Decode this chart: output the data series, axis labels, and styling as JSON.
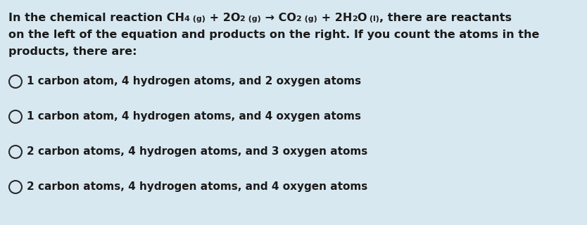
{
  "background_color": "#d8e8f0",
  "text_color": "#1a1a1a",
  "header_line1_parts": [
    {
      "text": "In the chemical reaction CH",
      "sub": false,
      "size": 11.5
    },
    {
      "text": "4 (g)",
      "sub": true,
      "size": 8
    },
    {
      "text": " + 2O",
      "sub": false,
      "size": 11.5
    },
    {
      "text": "2 (g)",
      "sub": true,
      "size": 8
    },
    {
      "text": " → CO",
      "sub": false,
      "size": 11.5
    },
    {
      "text": "2 (g)",
      "sub": true,
      "size": 8
    },
    {
      "text": " + 2H",
      "sub": false,
      "size": 11.5
    },
    {
      "text": "2",
      "sub": true,
      "size": 8
    },
    {
      "text": "O",
      "sub": false,
      "size": 11.5
    },
    {
      "text": " (l)",
      "sub": true,
      "size": 8
    },
    {
      "text": ", there are reactants",
      "sub": false,
      "size": 11.5
    }
  ],
  "header_line2": "on the left of the equation and products on the right. If you count the atoms in the",
  "header_line3": "products, there are:",
  "options": [
    "1 carbon atom, 4 hydrogen atoms, and 2 oxygen atoms",
    "1 carbon atom, 4 hydrogen atoms, and 4 oxygen atoms",
    "2 carbon atoms, 4 hydrogen atoms, and 3 oxygen atoms",
    "2 carbon atoms, 4 hydrogen atoms, and 4 oxygen atoms"
  ],
  "circle_color": "#2a2a2a",
  "font_size_header": 11.5,
  "font_size_options": 11.0,
  "figsize": [
    8.34,
    3.2
  ],
  "dpi": 100
}
